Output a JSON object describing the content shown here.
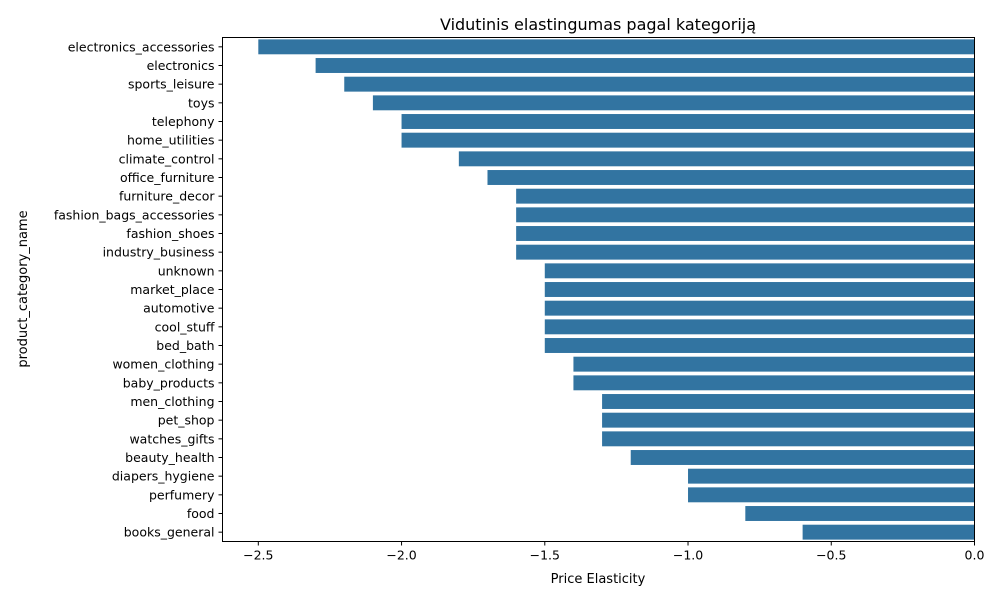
{
  "chart_data": {
    "type": "bar",
    "orientation": "horizontal",
    "title": "Vidutinis elastingumas pagal kategoriją",
    "xlabel": "Price Elasticity",
    "ylabel": "product_category_name",
    "xlim": [
      -2.625,
      0.0
    ],
    "xticks": [
      -2.5,
      -2.0,
      -1.5,
      -1.0,
      -0.5,
      0.0
    ],
    "xtick_labels": [
      "−2.5",
      "−2.0",
      "−1.5",
      "−1.0",
      "−0.5",
      "0.0"
    ],
    "grid": false,
    "bar_color": "#3274a1",
    "categories": [
      "electronics_accessories",
      "electronics",
      "sports_leisure",
      "toys",
      "telephony",
      "home_utilities",
      "climate_control",
      "office_furniture",
      "furniture_decor",
      "fashion_bags_accessories",
      "fashion_shoes",
      "industry_business",
      "unknown",
      "market_place",
      "automotive",
      "cool_stuff",
      "bed_bath",
      "women_clothing",
      "baby_products",
      "men_clothing",
      "pet_shop",
      "watches_gifts",
      "beauty_health",
      "diapers_hygiene",
      "perfumery",
      "food",
      "books_general"
    ],
    "values": [
      -2.5,
      -2.3,
      -2.2,
      -2.1,
      -2.0,
      -2.0,
      -1.8,
      -1.7,
      -1.6,
      -1.6,
      -1.6,
      -1.6,
      -1.5,
      -1.5,
      -1.5,
      -1.5,
      -1.5,
      -1.4,
      -1.4,
      -1.3,
      -1.3,
      -1.3,
      -1.2,
      -1.0,
      -1.0,
      -0.8,
      -0.6
    ]
  }
}
